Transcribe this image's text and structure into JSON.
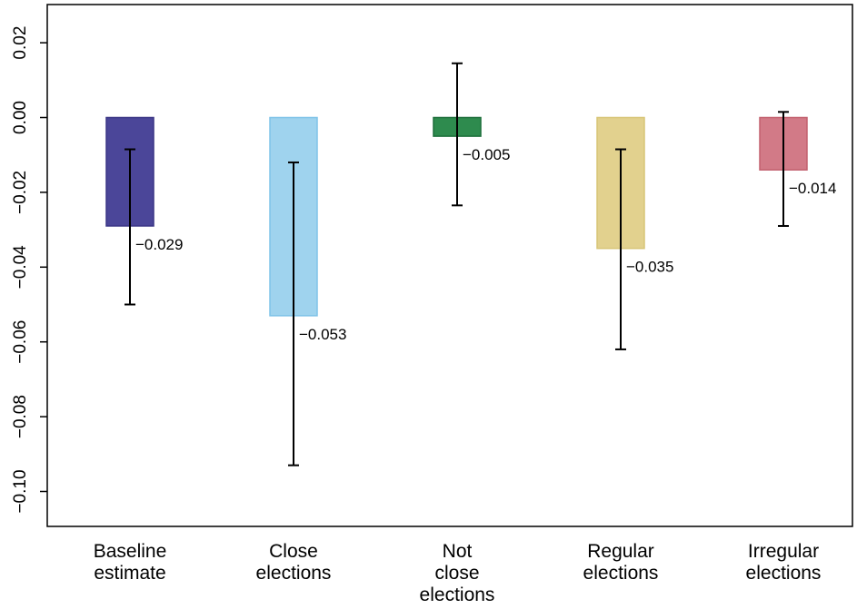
{
  "chart_data": {
    "type": "bar",
    "categories": [
      [
        "Baseline",
        "estimate"
      ],
      [
        "Close",
        "elections"
      ],
      [
        "Not",
        "close",
        "elections"
      ],
      [
        "Regular",
        "elections"
      ],
      [
        "Irregular",
        "elections"
      ]
    ],
    "values": [
      -0.029,
      -0.053,
      -0.005,
      -0.035,
      -0.014
    ],
    "value_labels": [
      "−0.029",
      "−0.053",
      "−0.005",
      "−0.035",
      "−0.014"
    ],
    "ci_lower": [
      -0.05,
      -0.093,
      -0.0235,
      -0.062,
      -0.029
    ],
    "ci_upper": [
      -0.0085,
      -0.012,
      0.0145,
      -0.0085,
      0.0015
    ],
    "colors": [
      "#4b4699",
      "#9fd3ee",
      "#2e8b4e",
      "#e2d18e",
      "#d27a87"
    ],
    "edge_colors": [
      "#3a3585",
      "#7fc3e8",
      "#1d6e3a",
      "#d8c577",
      "#c2606e"
    ],
    "ylim": [
      -0.108,
      0.03
    ],
    "yticks": [
      0.02,
      0.0,
      -0.02,
      -0.04,
      -0.06,
      -0.08,
      -0.1
    ],
    "ytick_labels": [
      "0.02",
      "0.00",
      "−0.02",
      "−0.04",
      "−0.06",
      "−0.08",
      "−0.10"
    ],
    "title": "",
    "xlabel": "",
    "ylabel": "",
    "grid": false
  }
}
